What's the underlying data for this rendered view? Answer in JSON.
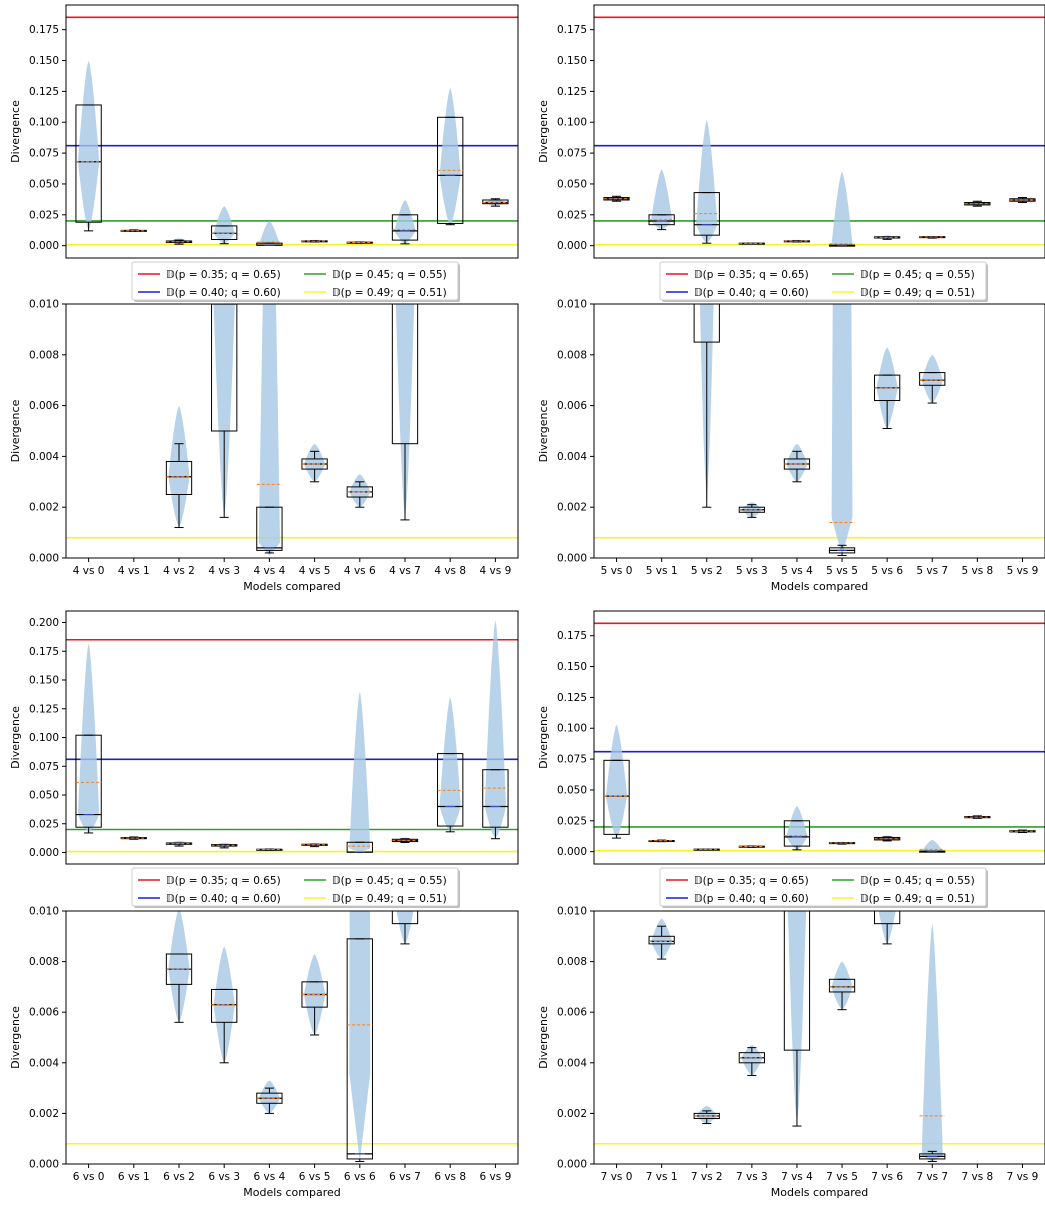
{
  "legend_entries": [
    {
      "label": "𝔻(p = 0.35; q = 0.65)",
      "color": "#e41a1c"
    },
    {
      "label": "𝔻(p = 0.45; q = 0.55)",
      "color": "#2ca02c"
    },
    {
      "label": "𝔻(p = 0.40; q = 0.60)",
      "color": "#1f1fcc"
    },
    {
      "label": "𝔻(p = 0.49; q = 0.51)",
      "color": "#f5f52a"
    }
  ],
  "colors": {
    "violin": "#a6c8e3",
    "box": "#000000",
    "median": "#000000",
    "mean": "#ff7f0e",
    "notch_median": "#3b4cc0"
  },
  "chart_data": [
    {
      "type": "box-violin",
      "panel": "top",
      "ylabel": "Divergence",
      "xlabel": "",
      "ylim": [
        -0.01,
        0.195
      ],
      "yticks": [
        "0.000",
        "0.025",
        "0.050",
        "0.075",
        "0.100",
        "0.125",
        "0.150",
        "0.175"
      ],
      "reference_lines": [
        {
          "name": "D(p=0.35;q=0.65)",
          "value": 0.185,
          "color": "#e41a1c"
        },
        {
          "name": "D(p=0.40;q=0.60)",
          "value": 0.081,
          "color": "#1f1fcc"
        },
        {
          "name": "D(p=0.45;q=0.55)",
          "value": 0.02,
          "color": "#2ca02c"
        },
        {
          "name": "D(p=0.49;q=0.51)",
          "value": 0.0008,
          "color": "#f5f52a"
        }
      ],
      "categories": [
        "4 vs 0",
        "4 vs 1",
        "4 vs 2",
        "4 vs 3",
        "4 vs 4",
        "4 vs 5",
        "4 vs 6",
        "4 vs 7",
        "4 vs 8",
        "4 vs 9"
      ],
      "boxes": [
        {
          "wlo": 0.012,
          "q1": 0.019,
          "med": 0.068,
          "q3": 0.114,
          "whi": 0.114,
          "mean": 0.068,
          "vmin": 0.012,
          "vmax": 0.15
        },
        {
          "wlo": 0.0115,
          "q1": 0.0118,
          "med": 0.0121,
          "q3": 0.0124,
          "whi": 0.0128,
          "mean": 0.0121,
          "vmin": 0.0115,
          "vmax": 0.0128
        },
        {
          "wlo": 0.0012,
          "q1": 0.0025,
          "med": 0.0032,
          "q3": 0.0038,
          "whi": 0.0045,
          "mean": 0.0032,
          "vmin": 0.0012,
          "vmax": 0.006
        },
        {
          "wlo": 0.0016,
          "q1": 0.005,
          "med": 0.01,
          "q3": 0.016,
          "whi": 0.016,
          "mean": 0.01,
          "vmin": 0.0016,
          "vmax": 0.032
        },
        {
          "wlo": 0.0002,
          "q1": 0.0003,
          "med": 0.0004,
          "q3": 0.002,
          "whi": 0.002,
          "mean": 0.0029,
          "vmin": 0.0001,
          "vmax": 0.02
        },
        {
          "wlo": 0.003,
          "q1": 0.0035,
          "med": 0.0037,
          "q3": 0.0039,
          "whi": 0.0042,
          "mean": 0.0037,
          "vmin": 0.003,
          "vmax": 0.0045
        },
        {
          "wlo": 0.002,
          "q1": 0.0024,
          "med": 0.0026,
          "q3": 0.0028,
          "whi": 0.003,
          "mean": 0.0026,
          "vmin": 0.002,
          "vmax": 0.0033
        },
        {
          "wlo": 0.0015,
          "q1": 0.0045,
          "med": 0.012,
          "q3": 0.025,
          "whi": 0.025,
          "mean": 0.013,
          "vmin": 0.0015,
          "vmax": 0.037
        },
        {
          "wlo": 0.017,
          "q1": 0.018,
          "med": 0.057,
          "q3": 0.104,
          "whi": 0.104,
          "mean": 0.061,
          "vmin": 0.016,
          "vmax": 0.128
        },
        {
          "wlo": 0.032,
          "q1": 0.034,
          "med": 0.035,
          "q3": 0.037,
          "whi": 0.038,
          "mean": 0.035,
          "vmin": 0.032,
          "vmax": 0.038
        }
      ]
    },
    {
      "type": "box-violin",
      "panel": "zoom",
      "ylabel": "Divergence",
      "xlabel": "Models compared",
      "ylim": [
        0,
        0.01
      ],
      "yticks": [
        "0.000",
        "0.002",
        "0.004",
        "0.006",
        "0.008",
        "0.010"
      ],
      "reference_lines": [
        {
          "name": "D(p=0.49;q=0.51)",
          "value": 0.0008,
          "color": "#f5f52a"
        }
      ],
      "categories": [
        "4 vs 0",
        "4 vs 1",
        "4 vs 2",
        "4 vs 3",
        "4 vs 4",
        "4 vs 5",
        "4 vs 6",
        "4 vs 7",
        "4 vs 8",
        "4 vs 9"
      ],
      "boxes": "same-as-previous"
    },
    {
      "type": "box-violin",
      "panel": "top",
      "ylabel": "Divergence",
      "xlabel": "",
      "ylim": [
        -0.01,
        0.195
      ],
      "yticks": [
        "0.000",
        "0.025",
        "0.050",
        "0.075",
        "0.100",
        "0.125",
        "0.150",
        "0.175"
      ],
      "reference_lines": [
        {
          "name": "D(p=0.35;q=0.65)",
          "value": 0.185,
          "color": "#e41a1c"
        },
        {
          "name": "D(p=0.40;q=0.60)",
          "value": 0.081,
          "color": "#1f1fcc"
        },
        {
          "name": "D(p=0.45;q=0.55)",
          "value": 0.02,
          "color": "#2ca02c"
        },
        {
          "name": "D(p=0.49;q=0.51)",
          "value": 0.0008,
          "color": "#f5f52a"
        }
      ],
      "categories": [
        "5 vs 0",
        "5 vs 1",
        "5 vs 2",
        "5 vs 3",
        "5 vs 4",
        "5 vs 5",
        "5 vs 6",
        "5 vs 7",
        "5 vs 8",
        "5 vs 9"
      ],
      "boxes": [
        {
          "wlo": 0.036,
          "q1": 0.037,
          "med": 0.038,
          "q3": 0.039,
          "whi": 0.04,
          "mean": 0.038,
          "vmin": 0.036,
          "vmax": 0.04
        },
        {
          "wlo": 0.013,
          "q1": 0.017,
          "med": 0.02,
          "q3": 0.025,
          "whi": 0.025,
          "mean": 0.021,
          "vmin": 0.013,
          "vmax": 0.062
        },
        {
          "wlo": 0.002,
          "q1": 0.0085,
          "med": 0.017,
          "q3": 0.043,
          "whi": 0.043,
          "mean": 0.026,
          "vmin": 0.002,
          "vmax": 0.102
        },
        {
          "wlo": 0.0016,
          "q1": 0.0018,
          "med": 0.0019,
          "q3": 0.002,
          "whi": 0.0021,
          "mean": 0.0019,
          "vmin": 0.0016,
          "vmax": 0.0022
        },
        {
          "wlo": 0.003,
          "q1": 0.0035,
          "med": 0.0037,
          "q3": 0.0039,
          "whi": 0.0042,
          "mean": 0.0037,
          "vmin": 0.003,
          "vmax": 0.0045
        },
        {
          "wlo": 0.0001,
          "q1": 0.0002,
          "med": 0.0003,
          "q3": 0.0004,
          "whi": 0.0005,
          "mean": 0.0014,
          "vmin": 0.0001,
          "vmax": 0.06
        },
        {
          "wlo": 0.0051,
          "q1": 0.0062,
          "med": 0.0067,
          "q3": 0.0072,
          "whi": 0.0072,
          "mean": 0.0067,
          "vmin": 0.0051,
          "vmax": 0.0083
        },
        {
          "wlo": 0.0061,
          "q1": 0.0068,
          "med": 0.007,
          "q3": 0.0073,
          "whi": 0.0073,
          "mean": 0.007,
          "vmin": 0.0061,
          "vmax": 0.008
        },
        {
          "wlo": 0.032,
          "q1": 0.033,
          "med": 0.034,
          "q3": 0.035,
          "whi": 0.036,
          "mean": 0.034,
          "vmin": 0.032,
          "vmax": 0.036
        },
        {
          "wlo": 0.035,
          "q1": 0.036,
          "med": 0.037,
          "q3": 0.038,
          "whi": 0.039,
          "mean": 0.037,
          "vmin": 0.035,
          "vmax": 0.039
        }
      ]
    },
    {
      "type": "box-violin",
      "panel": "zoom",
      "ylabel": "Divergence",
      "xlabel": "Models compared",
      "ylim": [
        0,
        0.01
      ],
      "yticks": [
        "0.000",
        "0.002",
        "0.004",
        "0.006",
        "0.008",
        "0.010"
      ],
      "reference_lines": [
        {
          "name": "D(p=0.49;q=0.51)",
          "value": 0.0008,
          "color": "#f5f52a"
        }
      ],
      "categories": [
        "5 vs 0",
        "5 vs 1",
        "5 vs 2",
        "5 vs 3",
        "5 vs 4",
        "5 vs 5",
        "5 vs 6",
        "5 vs 7",
        "5 vs 8",
        "5 vs 9"
      ],
      "boxes": "same-as-previous"
    },
    {
      "type": "box-violin",
      "panel": "top",
      "ylabel": "Divergence",
      "xlabel": "",
      "ylim": [
        -0.01,
        0.21
      ],
      "yticks": [
        "0.000",
        "0.025",
        "0.050",
        "0.075",
        "0.100",
        "0.125",
        "0.150",
        "0.175",
        "0.200"
      ],
      "reference_lines": [
        {
          "name": "D(p=0.35;q=0.65)",
          "value": 0.185,
          "color": "#e41a1c"
        },
        {
          "name": "D(p=0.40;q=0.60)",
          "value": 0.081,
          "color": "#1f1fcc"
        },
        {
          "name": "D(p=0.45;q=0.55)",
          "value": 0.02,
          "color": "#2ca02c"
        },
        {
          "name": "D(p=0.49;q=0.51)",
          "value": 0.0008,
          "color": "#f5f52a"
        }
      ],
      "categories": [
        "6 vs 0",
        "6 vs 1",
        "6 vs 2",
        "6 vs 3",
        "6 vs 4",
        "6 vs 5",
        "6 vs 6",
        "6 vs 7",
        "6 vs 8",
        "6 vs 9"
      ],
      "boxes": [
        {
          "wlo": 0.017,
          "q1": 0.022,
          "med": 0.033,
          "q3": 0.102,
          "whi": 0.102,
          "mean": 0.061,
          "vmin": 0.017,
          "vmax": 0.182
        },
        {
          "wlo": 0.0115,
          "q1": 0.012,
          "med": 0.0125,
          "q3": 0.013,
          "whi": 0.0135,
          "mean": 0.0125,
          "vmin": 0.0115,
          "vmax": 0.0135
        },
        {
          "wlo": 0.0056,
          "q1": 0.0071,
          "med": 0.0077,
          "q3": 0.0083,
          "whi": 0.0083,
          "mean": 0.0077,
          "vmin": 0.0056,
          "vmax": 0.0101
        },
        {
          "wlo": 0.004,
          "q1": 0.0056,
          "med": 0.0063,
          "q3": 0.0069,
          "whi": 0.0069,
          "mean": 0.0063,
          "vmin": 0.004,
          "vmax": 0.0086
        },
        {
          "wlo": 0.002,
          "q1": 0.0024,
          "med": 0.0026,
          "q3": 0.0028,
          "whi": 0.003,
          "mean": 0.0026,
          "vmin": 0.002,
          "vmax": 0.0033
        },
        {
          "wlo": 0.0051,
          "q1": 0.0062,
          "med": 0.0067,
          "q3": 0.0072,
          "whi": 0.0072,
          "mean": 0.0067,
          "vmin": 0.0051,
          "vmax": 0.0083
        },
        {
          "wlo": 0.0001,
          "q1": 0.0002,
          "med": 0.0004,
          "q3": 0.0089,
          "whi": 0.0089,
          "mean": 0.0055,
          "vmin": 0.0001,
          "vmax": 0.14
        },
        {
          "wlo": 0.0087,
          "q1": 0.0095,
          "med": 0.0105,
          "q3": 0.0115,
          "whi": 0.012,
          "mean": 0.0105,
          "vmin": 0.0087,
          "vmax": 0.013
        },
        {
          "wlo": 0.018,
          "q1": 0.023,
          "med": 0.04,
          "q3": 0.086,
          "whi": 0.086,
          "mean": 0.054,
          "vmin": 0.018,
          "vmax": 0.135
        },
        {
          "wlo": 0.012,
          "q1": 0.022,
          "med": 0.04,
          "q3": 0.072,
          "whi": 0.072,
          "mean": 0.056,
          "vmin": 0.012,
          "vmax": 0.202
        }
      ]
    },
    {
      "type": "box-violin",
      "panel": "zoom",
      "ylabel": "Divergence",
      "xlabel": "Models compared",
      "ylim": [
        0,
        0.01
      ],
      "yticks": [
        "0.000",
        "0.002",
        "0.004",
        "0.006",
        "0.008",
        "0.010"
      ],
      "reference_lines": [
        {
          "name": "D(p=0.49;q=0.51)",
          "value": 0.0008,
          "color": "#f5f52a"
        }
      ],
      "categories": [
        "6 vs 0",
        "6 vs 1",
        "6 vs 2",
        "6 vs 3",
        "6 vs 4",
        "6 vs 5",
        "6 vs 6",
        "6 vs 7",
        "6 vs 8",
        "6 vs 9"
      ],
      "boxes": "same-as-previous"
    },
    {
      "type": "box-violin",
      "panel": "top",
      "ylabel": "Divergence",
      "xlabel": "",
      "ylim": [
        -0.01,
        0.195
      ],
      "yticks": [
        "0.000",
        "0.025",
        "0.050",
        "0.075",
        "0.100",
        "0.125",
        "0.150",
        "0.175"
      ],
      "reference_lines": [
        {
          "name": "D(p=0.35;q=0.65)",
          "value": 0.185,
          "color": "#e41a1c"
        },
        {
          "name": "D(p=0.40;q=0.60)",
          "value": 0.081,
          "color": "#1f1fcc"
        },
        {
          "name": "D(p=0.45;q=0.55)",
          "value": 0.02,
          "color": "#2ca02c"
        },
        {
          "name": "D(p=0.49;q=0.51)",
          "value": 0.0008,
          "color": "#f5f52a"
        }
      ],
      "categories": [
        "7 vs 0",
        "7 vs 1",
        "7 vs 2",
        "7 vs 3",
        "7 vs 4",
        "7 vs 5",
        "7 vs 6",
        "7 vs 7",
        "7 vs 8",
        "7 vs 9"
      ],
      "boxes": [
        {
          "wlo": 0.011,
          "q1": 0.014,
          "med": 0.045,
          "q3": 0.074,
          "whi": 0.074,
          "mean": 0.045,
          "vmin": 0.011,
          "vmax": 0.103
        },
        {
          "wlo": 0.0081,
          "q1": 0.0087,
          "med": 0.0088,
          "q3": 0.009,
          "whi": 0.0094,
          "mean": 0.0088,
          "vmin": 0.0081,
          "vmax": 0.0097
        },
        {
          "wlo": 0.0016,
          "q1": 0.0018,
          "med": 0.0019,
          "q3": 0.002,
          "whi": 0.0021,
          "mean": 0.0019,
          "vmin": 0.0016,
          "vmax": 0.0023
        },
        {
          "wlo": 0.0035,
          "q1": 0.004,
          "med": 0.0042,
          "q3": 0.0044,
          "whi": 0.0046,
          "mean": 0.0042,
          "vmin": 0.0035,
          "vmax": 0.0047
        },
        {
          "wlo": 0.0015,
          "q1": 0.0045,
          "med": 0.012,
          "q3": 0.025,
          "whi": 0.025,
          "mean": 0.013,
          "vmin": 0.0015,
          "vmax": 0.037
        },
        {
          "wlo": 0.0061,
          "q1": 0.0068,
          "med": 0.007,
          "q3": 0.0073,
          "whi": 0.0073,
          "mean": 0.007,
          "vmin": 0.0061,
          "vmax": 0.008
        },
        {
          "wlo": 0.0087,
          "q1": 0.0095,
          "med": 0.0105,
          "q3": 0.0115,
          "whi": 0.012,
          "mean": 0.0105,
          "vmin": 0.0087,
          "vmax": 0.013
        },
        {
          "wlo": 0.0001,
          "q1": 0.0002,
          "med": 0.0003,
          "q3": 0.0004,
          "whi": 0.0005,
          "mean": 0.0019,
          "vmin": 0.0001,
          "vmax": 0.0095
        },
        {
          "wlo": 0.027,
          "q1": 0.0275,
          "med": 0.028,
          "q3": 0.0285,
          "whi": 0.029,
          "mean": 0.028,
          "vmin": 0.027,
          "vmax": 0.029
        },
        {
          "wlo": 0.0155,
          "q1": 0.016,
          "med": 0.0165,
          "q3": 0.017,
          "whi": 0.0175,
          "mean": 0.0165,
          "vmin": 0.0155,
          "vmax": 0.0175
        }
      ]
    },
    {
      "type": "box-violin",
      "panel": "zoom",
      "ylabel": "Divergence",
      "xlabel": "Models compared",
      "ylim": [
        0,
        0.01
      ],
      "yticks": [
        "0.000",
        "0.002",
        "0.004",
        "0.006",
        "0.008",
        "0.010"
      ],
      "reference_lines": [
        {
          "name": "D(p=0.49;q=0.51)",
          "value": 0.0008,
          "color": "#f5f52a"
        }
      ],
      "categories": [
        "7 vs 0",
        "7 vs 1",
        "7 vs 2",
        "7 vs 3",
        "7 vs 4",
        "7 vs 5",
        "7 vs 6",
        "7 vs 7",
        "7 vs 8",
        "7 vs 9"
      ],
      "boxes": "same-as-previous"
    }
  ]
}
